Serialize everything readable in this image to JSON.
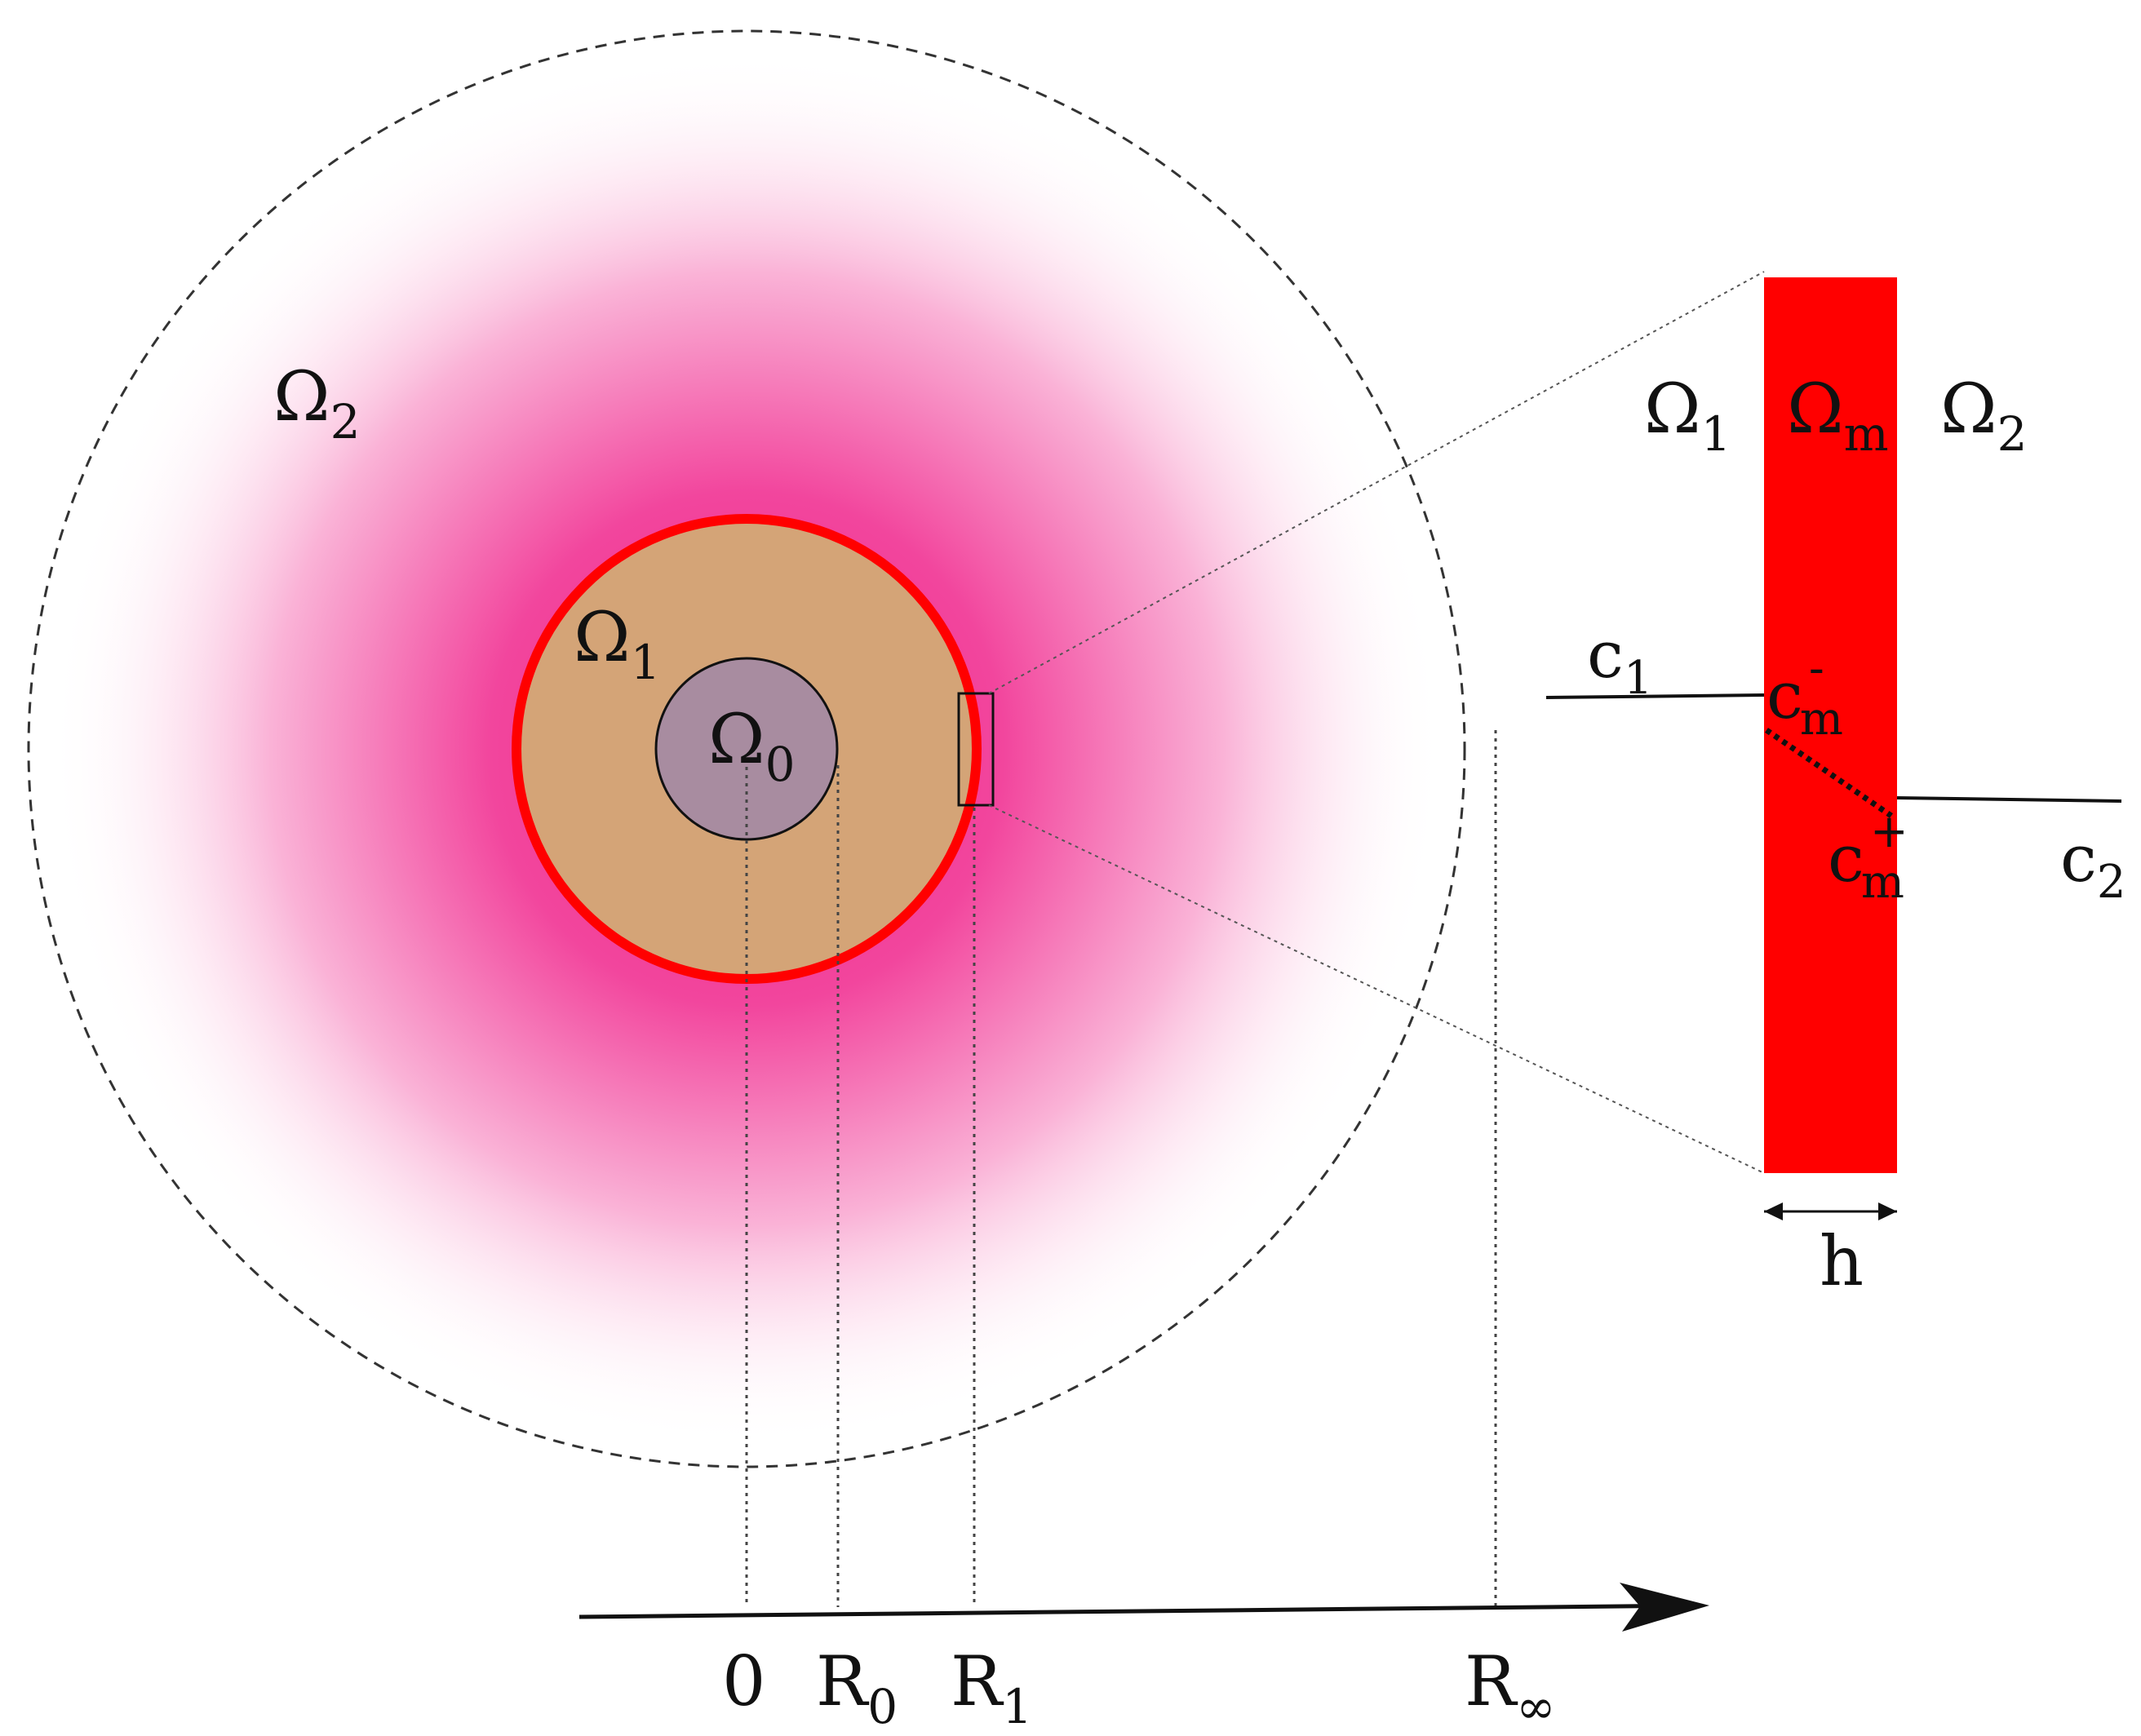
{
  "colors": {
    "halo_center": "#f0258c",
    "halo_edge": "#ffffff",
    "region1_fill": "#d4a477",
    "region0_fill": "#a88ca0",
    "membrane": "#ff0000",
    "line": "#111111"
  },
  "regions": {
    "omega2": {
      "base": "Ω",
      "sub": "2"
    },
    "omega1": {
      "base": "Ω",
      "sub": "1"
    },
    "omega0": {
      "base": "Ω",
      "sub": "0"
    }
  },
  "axis": {
    "ticks": [
      {
        "base": "0",
        "sub": ""
      },
      {
        "base": "R",
        "sub": "0"
      },
      {
        "base": "R",
        "sub": "1"
      },
      {
        "base": "R",
        "sub": "∞"
      }
    ]
  },
  "zoom": {
    "omega1": {
      "base": "Ω",
      "sub": "1"
    },
    "omegam": {
      "base": "Ω",
      "sub": "m"
    },
    "omega2": {
      "base": "Ω",
      "sub": "2"
    },
    "c1": {
      "base": "c",
      "sub": "1"
    },
    "c2": {
      "base": "c",
      "sub": "2"
    },
    "cm_minus": {
      "base": "c",
      "sub": "m",
      "sup": "-"
    },
    "cm_plus": {
      "base": "c",
      "sub": "m",
      "sup": "+"
    },
    "thickness": "h"
  }
}
